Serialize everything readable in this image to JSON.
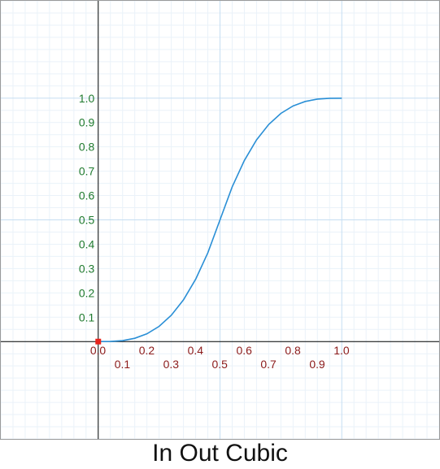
{
  "caption": "In Out Cubic",
  "chart_data": {
    "type": "line",
    "title": "",
    "xlabel": "",
    "ylabel": "",
    "xlim": [
      -0.4,
      1.4
    ],
    "ylim": [
      -0.4,
      1.4
    ],
    "grid": true,
    "x_ticks": [
      {
        "value": 0.0,
        "label": "0.0"
      },
      {
        "value": 0.1,
        "label": "0.1"
      },
      {
        "value": 0.2,
        "label": "0.2"
      },
      {
        "value": 0.3,
        "label": "0.3"
      },
      {
        "value": 0.4,
        "label": "0.4"
      },
      {
        "value": 0.5,
        "label": "0.5"
      },
      {
        "value": 0.6,
        "label": "0.6"
      },
      {
        "value": 0.7,
        "label": "0.7"
      },
      {
        "value": 0.8,
        "label": "0.8"
      },
      {
        "value": 0.9,
        "label": "0.9"
      },
      {
        "value": 1.0,
        "label": "1.0"
      }
    ],
    "y_ticks": [
      {
        "value": 0.1,
        "label": "0.1"
      },
      {
        "value": 0.2,
        "label": "0.2"
      },
      {
        "value": 0.3,
        "label": "0.3"
      },
      {
        "value": 0.4,
        "label": "0.4"
      },
      {
        "value": 0.5,
        "label": "0.5"
      },
      {
        "value": 0.6,
        "label": "0.6"
      },
      {
        "value": 0.7,
        "label": "0.7"
      },
      {
        "value": 0.8,
        "label": "0.8"
      },
      {
        "value": 0.9,
        "label": "0.9"
      },
      {
        "value": 1.0,
        "label": "1.0"
      }
    ],
    "x": [
      0,
      0.05,
      0.1,
      0.15,
      0.2,
      0.25,
      0.3,
      0.35,
      0.4,
      0.45,
      0.5,
      0.55,
      0.6,
      0.65,
      0.7,
      0.75,
      0.8,
      0.85,
      0.9,
      0.95,
      1.0
    ],
    "series": [
      {
        "values": [
          0,
          0.0005,
          0.004,
          0.0135,
          0.032,
          0.0625,
          0.108,
          0.1715,
          0.256,
          0.3645,
          0.5,
          0.6355,
          0.744,
          0.8285,
          0.892,
          0.9375,
          0.968,
          0.9865,
          0.996,
          0.9995,
          1.0
        ]
      }
    ],
    "marker_point": {
      "x": 0,
      "y": 0
    },
    "colors": {
      "curve": "#2a8fd6",
      "x_tick_labels": "#8b1a1a",
      "y_tick_labels": "#1f7a2e",
      "axes": "#000000",
      "grid_minor": "#eaf2f9",
      "grid_major": "#c5def2",
      "marker": "#e8231c"
    }
  }
}
